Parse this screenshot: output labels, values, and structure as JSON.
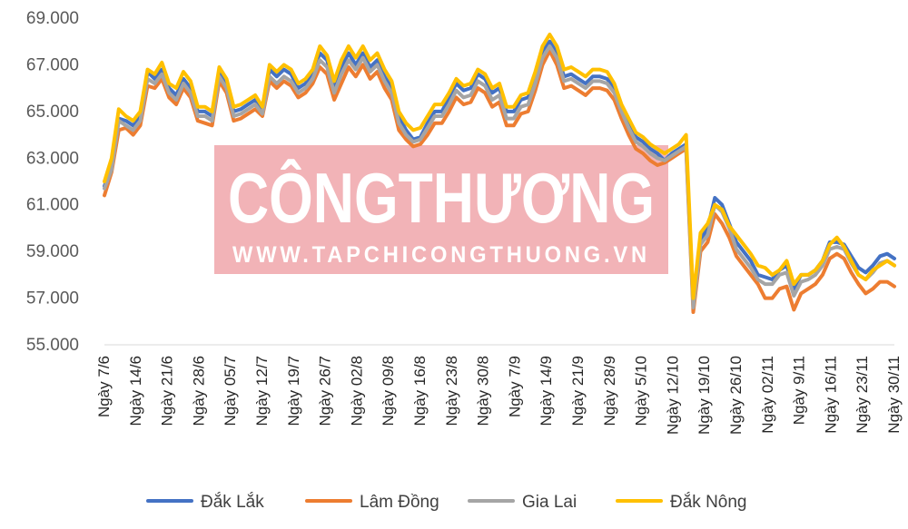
{
  "chart_data": {
    "type": "line",
    "title": "",
    "xlabel": "",
    "ylabel": "",
    "ylim": [
      55000,
      69000
    ],
    "y_ticks": [
      "55.000",
      "57.000",
      "59.000",
      "61.000",
      "63.000",
      "65.000",
      "67.000",
      "69.000"
    ],
    "x_tick_labels": [
      "Ngày 7/6",
      "Ngày 14/6",
      "Ngày 21/6",
      "Ngày 28/6",
      "Ngày 05/7",
      "Ngày 12/7",
      "Ngày 19/7",
      "Ngày 26/7",
      "Ngày 02/8",
      "Ngày 09/8",
      "Ngày 16/8",
      "Ngày 23/8",
      "Ngày 30/8",
      "Ngày 7/9",
      "Ngày 14/9",
      "Ngày 21/9",
      "Ngày 28/9",
      "Ngày 5/10",
      "Ngày 12/10",
      "Ngày 19/10",
      "Ngày 26/10",
      "Ngày 02/11",
      "Ngày 9/11",
      "Ngày 16/11",
      "Ngày 23/11",
      "Ngày 30/11"
    ],
    "grid": false,
    "legend": "bottom",
    "series": [
      {
        "name": "Đắk Lắk",
        "color": "#4472C4",
        "values": [
          61800,
          62600,
          64700,
          64600,
          64400,
          64800,
          66700,
          66400,
          66800,
          66000,
          65700,
          66400,
          66000,
          65000,
          65000,
          64800,
          66800,
          66200,
          65000,
          65100,
          65300,
          65500,
          65000,
          66800,
          66500,
          66800,
          66600,
          66000,
          66200,
          66700,
          67500,
          67200,
          66000,
          66900,
          67500,
          67000,
          67500,
          66900,
          67200,
          66500,
          66000,
          64800,
          64200,
          63800,
          63900,
          64500,
          65000,
          65000,
          65600,
          66200,
          65900,
          66000,
          66600,
          66400,
          65800,
          66000,
          65000,
          65000,
          65500,
          65600,
          66500,
          67600,
          68000,
          67500,
          66500,
          66600,
          66400,
          66200,
          66500,
          66500,
          66400,
          66000,
          65200,
          64500,
          63900,
          63700,
          63400,
          63200,
          62900,
          63200,
          63400,
          63600,
          56800,
          59500,
          60000,
          61300,
          61000,
          60200,
          59400,
          59000,
          58600,
          58000,
          57900,
          57800,
          58200,
          58400,
          57400,
          58000,
          58000,
          58200,
          58600,
          59400,
          59400,
          59300,
          58800,
          58300,
          58100,
          58400,
          58800,
          58900,
          58700
        ]
      },
      {
        "name": "Lâm Đồng",
        "color": "#ED7D31",
        "values": [
          61400,
          62400,
          64200,
          64300,
          64000,
          64400,
          66100,
          66000,
          66400,
          65600,
          65300,
          66000,
          65600,
          64600,
          64500,
          64400,
          66300,
          65800,
          64600,
          64700,
          64900,
          65100,
          64800,
          66300,
          66000,
          66300,
          66100,
          65600,
          65800,
          66200,
          66900,
          66600,
          65500,
          66200,
          66900,
          66500,
          67000,
          66400,
          66700,
          66000,
          65500,
          64200,
          63800,
          63500,
          63600,
          64000,
          64500,
          64500,
          65000,
          65600,
          65300,
          65400,
          66000,
          65800,
          65200,
          65400,
          64400,
          64400,
          64900,
          65000,
          65900,
          67000,
          67600,
          67000,
          66000,
          66100,
          65900,
          65700,
          66000,
          66000,
          65900,
          65500,
          64700,
          64000,
          63400,
          63200,
          62900,
          62700,
          62800,
          63000,
          63200,
          63400,
          56400,
          59000,
          59400,
          60600,
          60200,
          59600,
          58800,
          58400,
          58000,
          57600,
          57000,
          57000,
          57400,
          57500,
          56500,
          57200,
          57400,
          57600,
          58000,
          58700,
          58900,
          58700,
          58100,
          57600,
          57200,
          57400,
          57700,
          57700,
          57500
        ]
      },
      {
        "name": "Gia Lai",
        "color": "#A5A5A5",
        "values": [
          61700,
          62500,
          64600,
          64400,
          64200,
          64600,
          66400,
          66200,
          66600,
          65800,
          65500,
          66200,
          65800,
          64800,
          64800,
          64600,
          66500,
          66000,
          64800,
          64900,
          65100,
          65300,
          64900,
          66500,
          66200,
          66500,
          66300,
          65800,
          66000,
          66400,
          67200,
          66900,
          65800,
          66600,
          67200,
          66800,
          67300,
          66700,
          67000,
          66300,
          65800,
          64500,
          64000,
          63700,
          63800,
          64300,
          64800,
          64800,
          65300,
          65900,
          65600,
          65700,
          66300,
          66100,
          65500,
          65700,
          64700,
          64700,
          65200,
          65300,
          66200,
          67300,
          67800,
          67300,
          66300,
          66400,
          66200,
          66000,
          66300,
          66300,
          66200,
          65800,
          65000,
          64300,
          63700,
          63500,
          63200,
          63000,
          62900,
          63100,
          63300,
          63500,
          56600,
          59300,
          59700,
          61000,
          60700,
          60000,
          59100,
          58700,
          58300,
          57800,
          57600,
          57600,
          58000,
          58100,
          57100,
          57700,
          57800,
          58000,
          58400,
          59100,
          59200,
          59100,
          58500,
          58000,
          57800,
          58100,
          58500,
          58600,
          58400
        ]
      },
      {
        "name": "Đắk Nông",
        "color": "#FFC000",
        "values": [
          62000,
          63000,
          65100,
          64800,
          64600,
          65000,
          66800,
          66600,
          67100,
          66200,
          66000,
          66700,
          66300,
          65200,
          65200,
          65000,
          66900,
          66400,
          65200,
          65300,
          65500,
          65700,
          65200,
          67000,
          66700,
          67000,
          66800,
          66200,
          66400,
          66800,
          67800,
          67400,
          66300,
          67200,
          67800,
          67300,
          67800,
          67200,
          67500,
          66800,
          66300,
          65000,
          64500,
          64200,
          64300,
          64800,
          65300,
          65300,
          65800,
          66400,
          66100,
          66200,
          66800,
          66600,
          66000,
          66200,
          65200,
          65200,
          65700,
          65800,
          66700,
          67800,
          68300,
          67800,
          66800,
          66900,
          66700,
          66500,
          66800,
          66800,
          66700,
          66200,
          65300,
          64700,
          64100,
          63900,
          63600,
          63400,
          63200,
          63400,
          63600,
          64000,
          57000,
          59800,
          60200,
          61000,
          60800,
          60100,
          59700,
          59300,
          58900,
          58400,
          58300,
          58000,
          58200,
          58600,
          57600,
          58000,
          58000,
          58200,
          58600,
          59300,
          59600,
          59200,
          58600,
          58000,
          57800,
          58200,
          58400,
          58600,
          58400
        ]
      }
    ]
  },
  "watermark": {
    "title": "CÔNGTHƯƠNG",
    "url": "WWW.TAPCHICONGTHUONG.VN",
    "color": "#E8747C"
  }
}
